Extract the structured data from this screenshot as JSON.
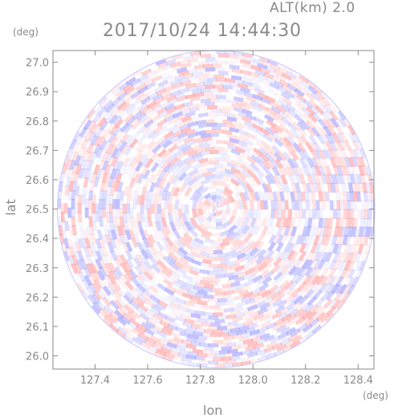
{
  "header": {
    "altitude_label": "ALT(km) 2.0",
    "timestamp": "2017/10/24 14:44:30"
  },
  "chart_data": {
    "type": "heatmap",
    "title": "2017/10/24 14:44:30",
    "subtitle": "ALT(km) 2.0",
    "xlabel": "lon",
    "ylabel": "lat",
    "x_unit": "(deg)",
    "y_unit": "(deg)",
    "xlim": [
      127.24,
      128.46
    ],
    "ylim": [
      25.955,
      27.04
    ],
    "x_ticks": [
      "127.4",
      "127.6",
      "127.8",
      "128.0",
      "128.2",
      "128.4"
    ],
    "x_tick_values": [
      127.4,
      127.6,
      127.8,
      128.0,
      128.2,
      128.4
    ],
    "y_ticks": [
      "27.0",
      "26.9",
      "26.8",
      "26.7",
      "26.6",
      "26.5",
      "26.4",
      "26.3",
      "26.2",
      "26.1",
      "26.0"
    ],
    "y_tick_values": [
      27.0,
      26.9,
      26.8,
      26.7,
      26.6,
      26.5,
      26.4,
      26.3,
      26.2,
      26.1,
      26.0
    ],
    "radar_center": {
      "lon": 127.86,
      "lat": 26.5
    },
    "colors": {
      "positive": "#ff9a9a",
      "negative": "#9a9aff",
      "neutral": "#ffffff",
      "axis": "#8a8a8a"
    }
  }
}
